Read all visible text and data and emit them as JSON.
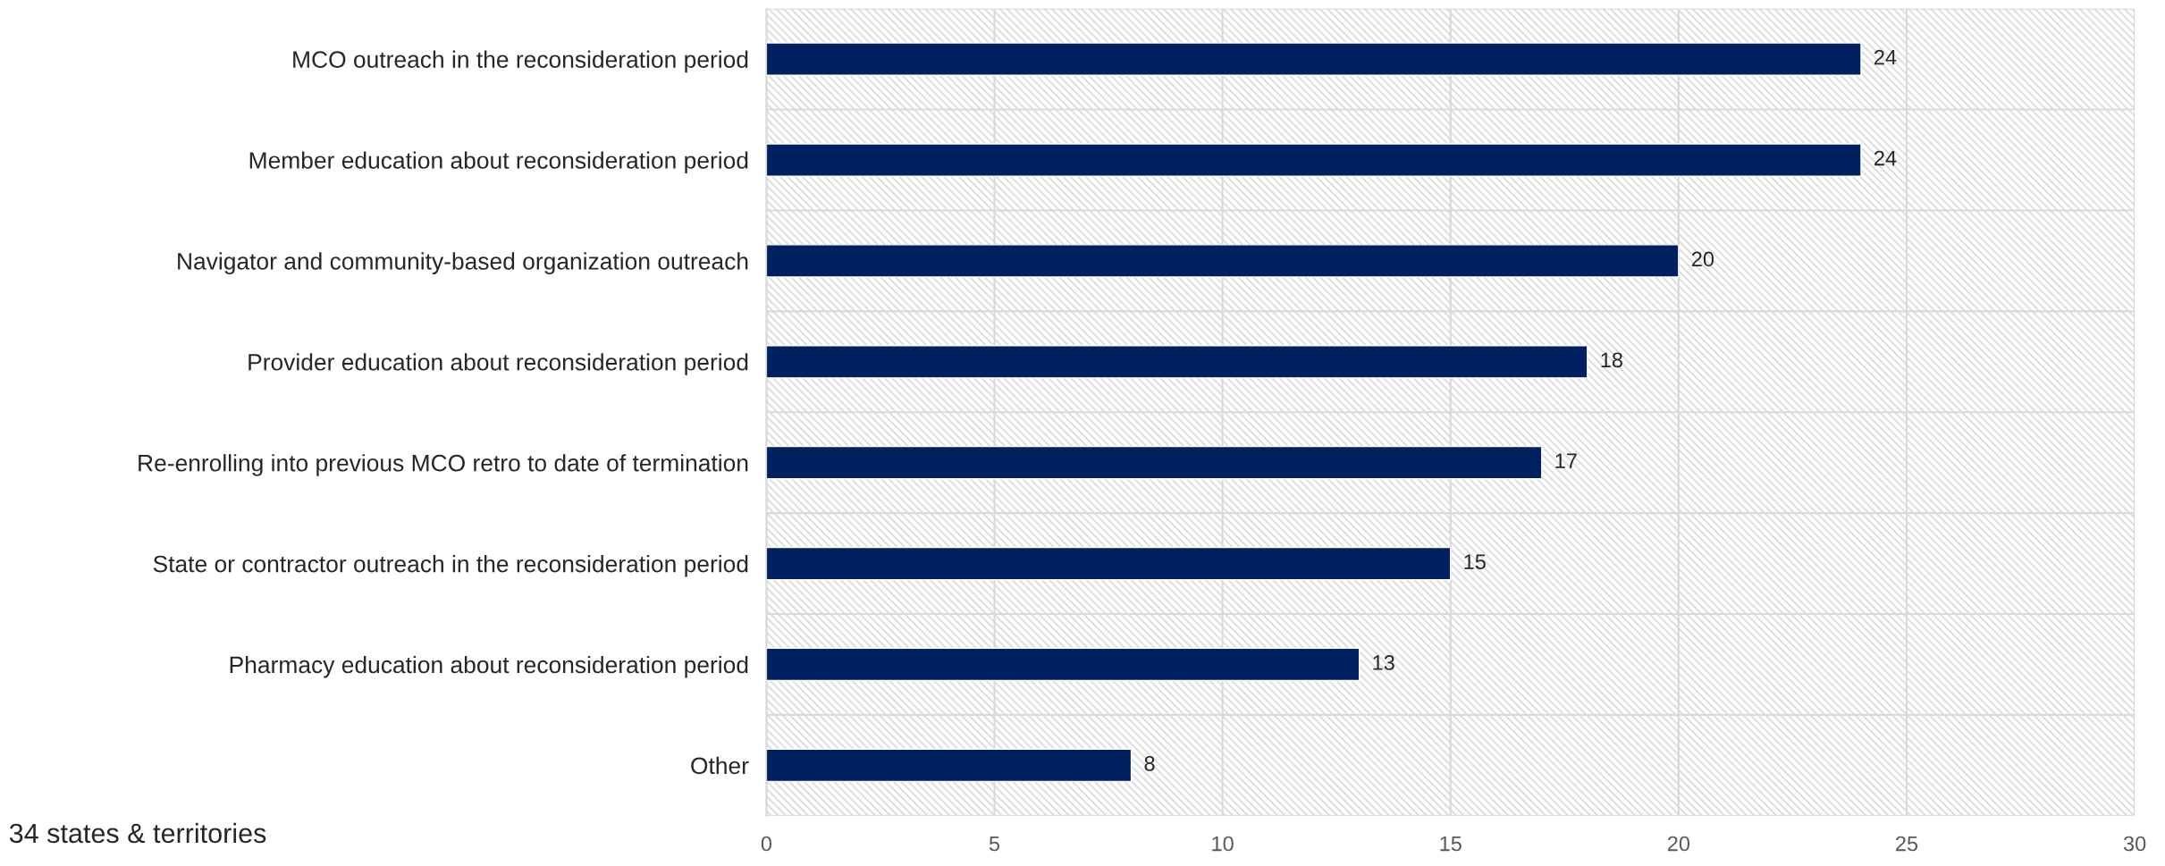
{
  "chart_data": {
    "type": "bar",
    "orientation": "horizontal",
    "categories": [
      "MCO outreach in the reconsideration period",
      "Member education about reconsideration period",
      "Navigator and community-based organization outreach",
      "Provider education about reconsideration period",
      "Re-enrolling into previous MCO retro to date of termination",
      "State or contractor outreach in the reconsideration period",
      "Pharmacy education about reconsideration period",
      "Other"
    ],
    "values": [
      24,
      24,
      20,
      18,
      17,
      15,
      13,
      8
    ],
    "color": "#002060",
    "xlim": [
      0,
      30
    ],
    "xticks": [
      0,
      5,
      10,
      15,
      20,
      25,
      30
    ],
    "grid": true,
    "data_labels": true,
    "annotations": [
      "34 states & territories"
    ]
  }
}
